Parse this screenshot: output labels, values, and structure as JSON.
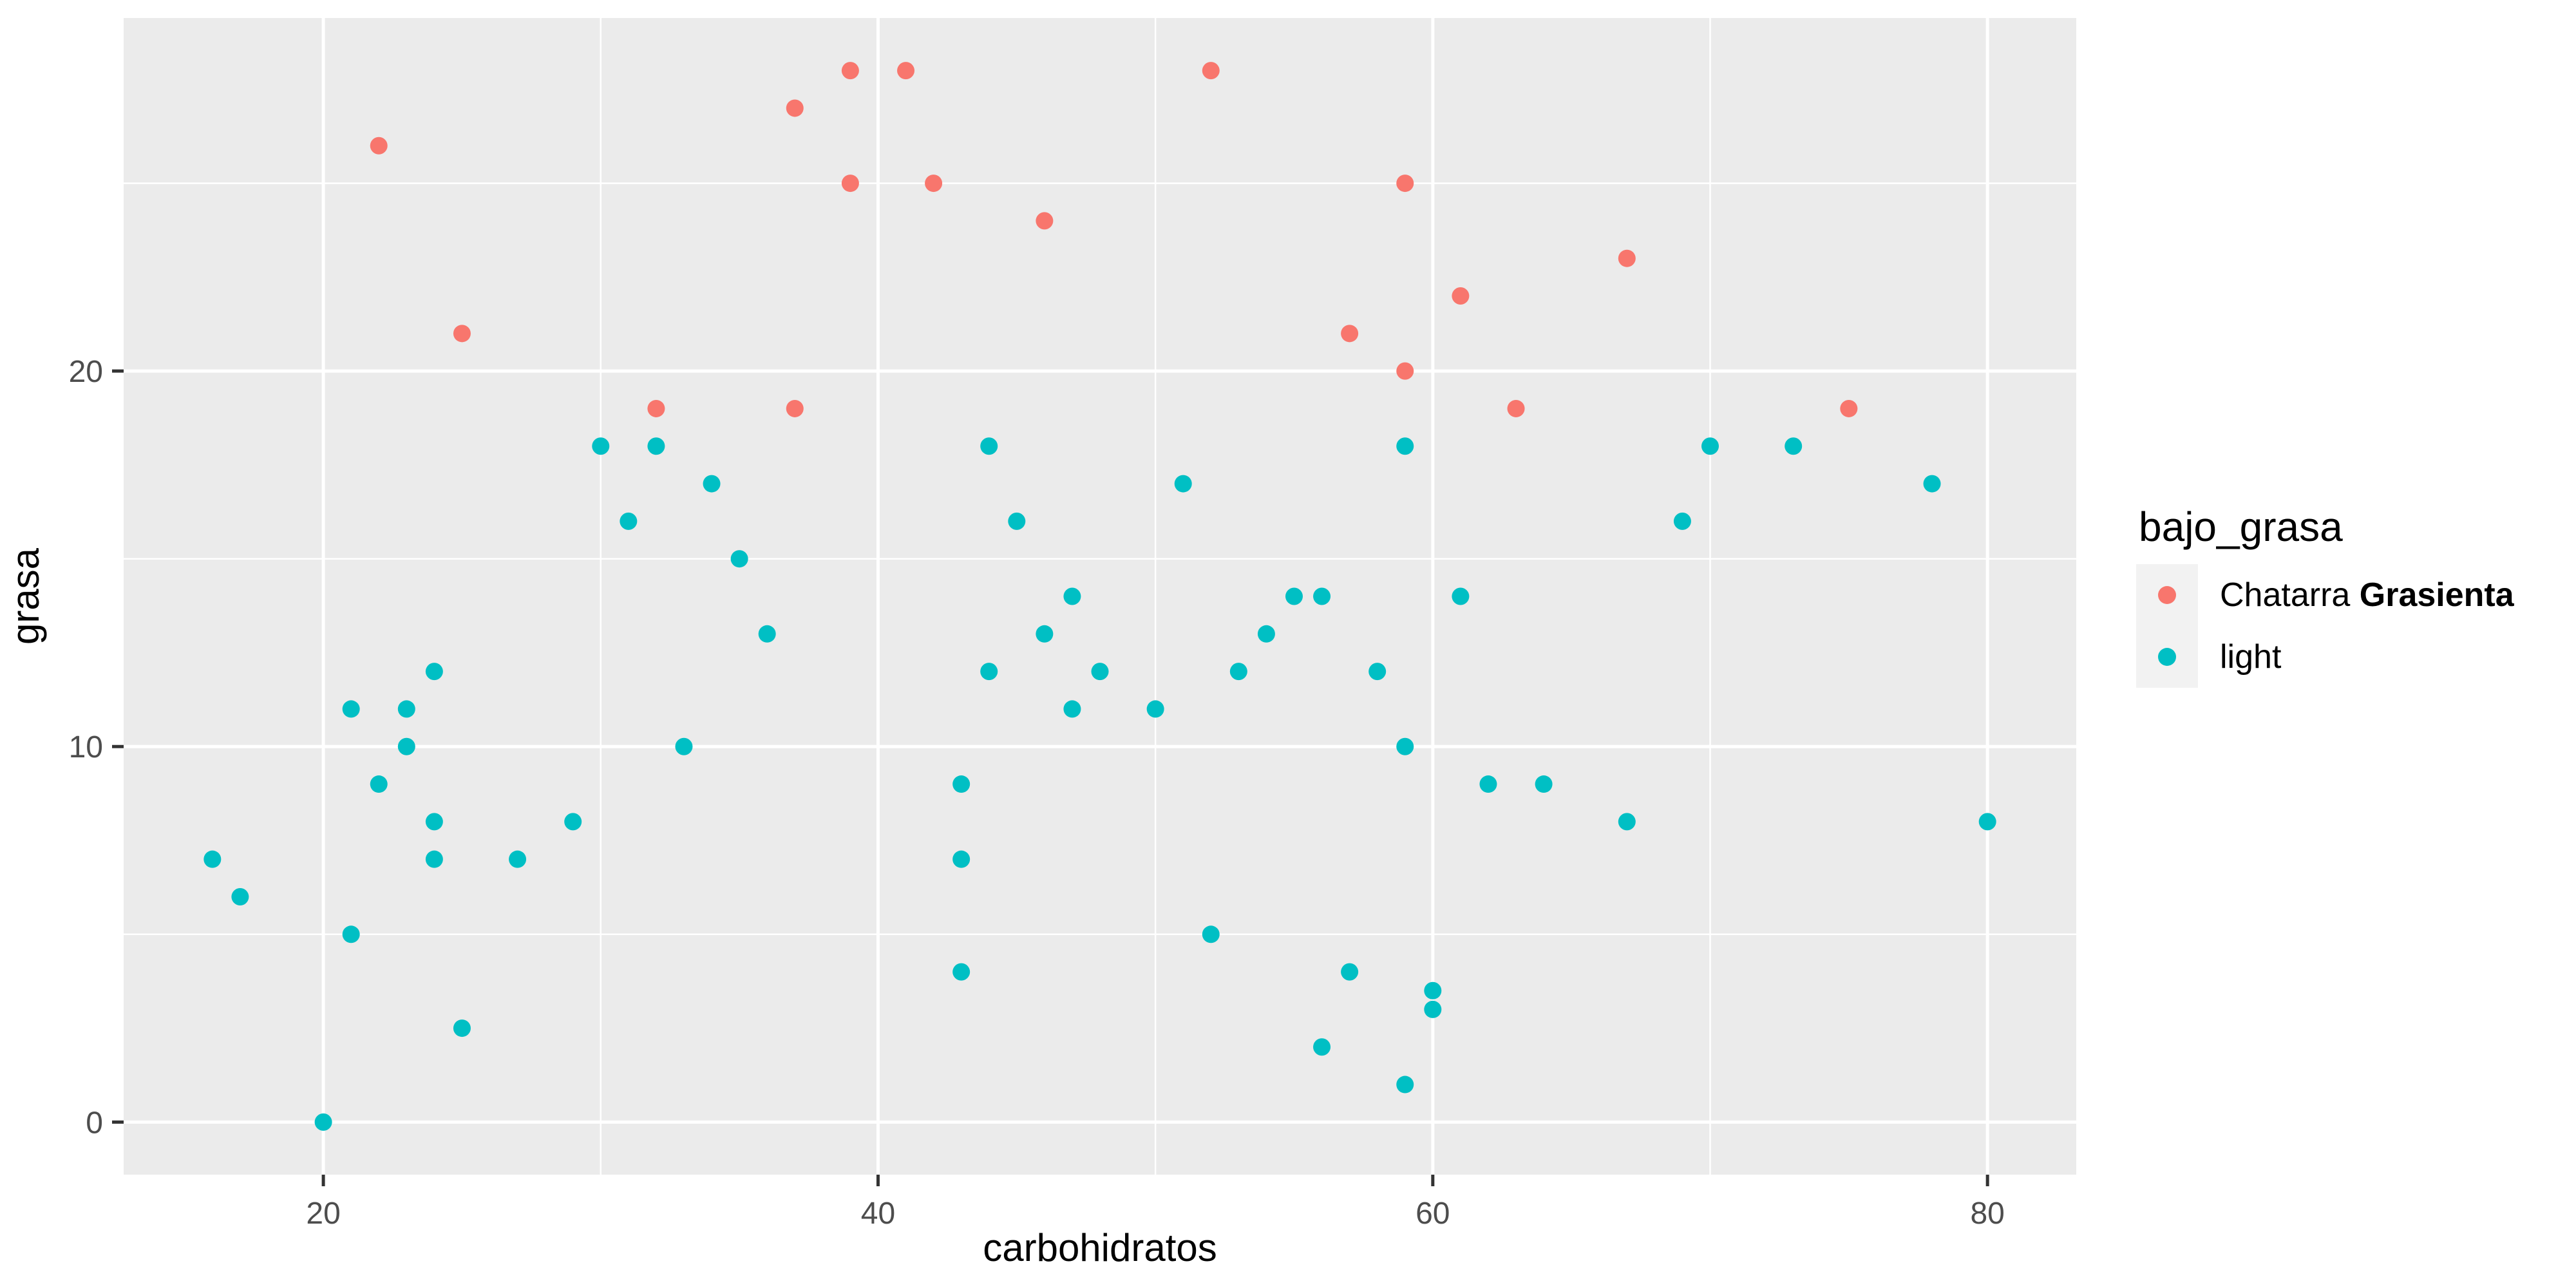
{
  "chart_data": {
    "type": "scatter",
    "title": "",
    "xlabel": "carbohidratos",
    "ylabel": "grasa",
    "xlim": [
      12.8,
      83.2
    ],
    "ylim": [
      -1.4,
      29.4
    ],
    "x_major_ticks": [
      20,
      40,
      60,
      80
    ],
    "x_minor_ticks": [
      30,
      50,
      70
    ],
    "y_major_ticks": [
      0,
      10,
      20
    ],
    "y_minor_ticks": [
      5,
      15,
      25
    ],
    "grid": "white major+minor gridlines on gray panel",
    "legend_position": "right",
    "point_radius_px": 13.5,
    "series": [
      {
        "name": "Chatarra Grasienta",
        "color": "#F8766D",
        "points": [
          [
            22,
            26
          ],
          [
            25,
            21
          ],
          [
            32,
            19
          ],
          [
            37,
            27
          ],
          [
            37,
            19
          ],
          [
            39,
            28
          ],
          [
            39,
            25
          ],
          [
            41,
            28
          ],
          [
            42,
            25
          ],
          [
            46,
            24
          ],
          [
            52,
            28
          ],
          [
            57,
            21
          ],
          [
            59,
            25
          ],
          [
            59,
            20
          ],
          [
            61,
            22
          ],
          [
            63,
            19
          ],
          [
            67,
            23
          ],
          [
            75,
            19
          ]
        ]
      },
      {
        "name": "light",
        "color": "#00BFC4",
        "points": [
          [
            16,
            7
          ],
          [
            17,
            6
          ],
          [
            20,
            0
          ],
          [
            21,
            5
          ],
          [
            21,
            11
          ],
          [
            22,
            9
          ],
          [
            23,
            10
          ],
          [
            23,
            11
          ],
          [
            24,
            7
          ],
          [
            24,
            8
          ],
          [
            24,
            12
          ],
          [
            25,
            2.5
          ],
          [
            27,
            7
          ],
          [
            29,
            8
          ],
          [
            30,
            18
          ],
          [
            31,
            16
          ],
          [
            32,
            18
          ],
          [
            33,
            10
          ],
          [
            34,
            17
          ],
          [
            35,
            15
          ],
          [
            36,
            13
          ],
          [
            43,
            4
          ],
          [
            43,
            7
          ],
          [
            43,
            9
          ],
          [
            44,
            12
          ],
          [
            44,
            18
          ],
          [
            45,
            16
          ],
          [
            46,
            13
          ],
          [
            47,
            11
          ],
          [
            47,
            14
          ],
          [
            48,
            12
          ],
          [
            50,
            11
          ],
          [
            51,
            17
          ],
          [
            52,
            5
          ],
          [
            53,
            12
          ],
          [
            54,
            13
          ],
          [
            55,
            14
          ],
          [
            56,
            2
          ],
          [
            56,
            14
          ],
          [
            57,
            4
          ],
          [
            58,
            12
          ],
          [
            59,
            1
          ],
          [
            59,
            10
          ],
          [
            59,
            18
          ],
          [
            60,
            3
          ],
          [
            60,
            3.5
          ],
          [
            61,
            14
          ],
          [
            62,
            9
          ],
          [
            64,
            9
          ],
          [
            67,
            8
          ],
          [
            69,
            16
          ],
          [
            70,
            18
          ],
          [
            73,
            18
          ],
          [
            78,
            17
          ],
          [
            80,
            8
          ]
        ]
      }
    ]
  },
  "axes": {
    "x_title": "carbohidratos",
    "y_title": "grasa",
    "x_tick_labels": [
      "20",
      "40",
      "60",
      "80"
    ],
    "y_tick_labels": [
      "0",
      "10",
      "20"
    ]
  },
  "legend": {
    "title": "bajo_grasa",
    "entries": [
      {
        "label": "Chatarra Grasienta",
        "label_regular": "Chatarra ",
        "label_bold": "Grasienta",
        "color": "#F8766D"
      },
      {
        "label": "light",
        "label_regular": "light",
        "label_bold": "",
        "color": "#00BFC4"
      }
    ],
    "key_background": "#F2F2F2"
  },
  "style": {
    "figure_background": "#FFFFFF",
    "panel_background": "#EBEBEB",
    "grid_color": "#FFFFFF",
    "tick_color": "#333333",
    "tick_label_color": "#4D4D4D",
    "axis_title_color": "#000000"
  }
}
